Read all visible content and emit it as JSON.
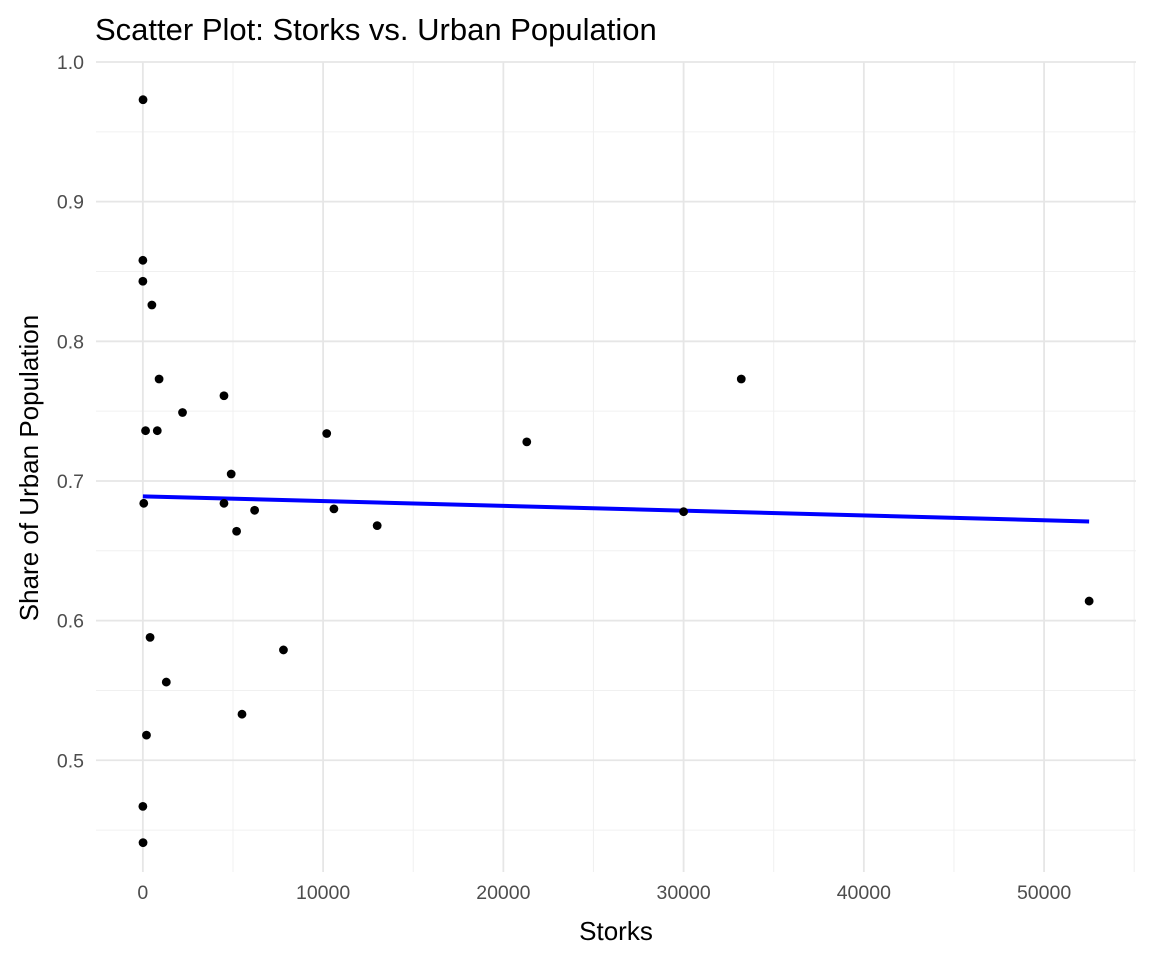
{
  "chart_data": {
    "type": "scatter",
    "title": "Scatter Plot: Storks vs. Urban Population",
    "xlabel": "Storks",
    "ylabel": "Share of Urban Population",
    "xlim": [
      -2600,
      55100
    ],
    "ylim": [
      0.42,
      1.0
    ],
    "x_ticks": [
      0,
      10000,
      20000,
      30000,
      40000,
      50000
    ],
    "x_tick_labels": [
      "0",
      "10000",
      "20000",
      "30000",
      "40000",
      "50000"
    ],
    "y_ticks": [
      0.5,
      0.6,
      0.7,
      0.8,
      0.9,
      1.0
    ],
    "y_tick_labels": [
      "0.5",
      "0.6",
      "0.7",
      "0.8",
      "0.9",
      "1.0"
    ],
    "grid": true,
    "legend": "none",
    "point_color": "#000000",
    "line_color": "#0000ff",
    "points": [
      {
        "x": 10,
        "y": 0.973
      },
      {
        "x": 0,
        "y": 0.858
      },
      {
        "x": 0,
        "y": 0.843
      },
      {
        "x": 500,
        "y": 0.826
      },
      {
        "x": 900,
        "y": 0.773
      },
      {
        "x": 2200,
        "y": 0.749
      },
      {
        "x": 4500,
        "y": 0.761
      },
      {
        "x": 150,
        "y": 0.736
      },
      {
        "x": 800,
        "y": 0.736
      },
      {
        "x": 10200,
        "y": 0.734
      },
      {
        "x": 21300,
        "y": 0.728
      },
      {
        "x": 33200,
        "y": 0.773
      },
      {
        "x": 4900,
        "y": 0.705
      },
      {
        "x": 50,
        "y": 0.684
      },
      {
        "x": 4500,
        "y": 0.684
      },
      {
        "x": 6200,
        "y": 0.679
      },
      {
        "x": 10600,
        "y": 0.68
      },
      {
        "x": 13000,
        "y": 0.668
      },
      {
        "x": 5200,
        "y": 0.664
      },
      {
        "x": 30000,
        "y": 0.678
      },
      {
        "x": 52500,
        "y": 0.614
      },
      {
        "x": 400,
        "y": 0.588
      },
      {
        "x": 7800,
        "y": 0.579
      },
      {
        "x": 1300,
        "y": 0.556
      },
      {
        "x": 5500,
        "y": 0.533
      },
      {
        "x": 200,
        "y": 0.518
      },
      {
        "x": 0,
        "y": 0.467
      },
      {
        "x": 10,
        "y": 0.441
      }
    ],
    "trend_line": {
      "x": [
        0,
        52500
      ],
      "y": [
        0.689,
        0.671
      ]
    }
  }
}
